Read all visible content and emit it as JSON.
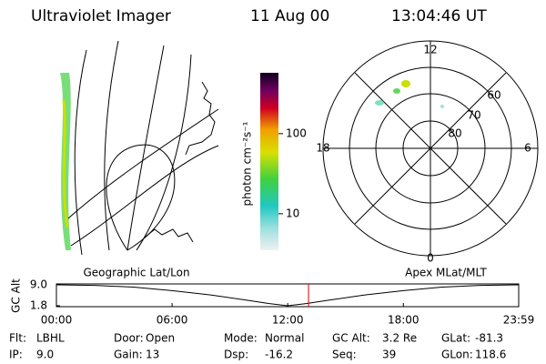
{
  "header": {
    "title": "Ultraviolet Imager",
    "date": "11 Aug 00",
    "time": "13:04:46 UT"
  },
  "colorbar": {
    "label": "photon cm⁻²s⁻¹",
    "lim": [
      3.5,
      575
    ],
    "log": true,
    "ticks": [
      10,
      100
    ]
  },
  "polar": {
    "mlt_labels": [
      "12",
      "6",
      "0",
      "18"
    ],
    "ring_labels": [
      "80",
      "70",
      "60"
    ]
  },
  "orbit": {
    "geo_label": "Geographic Lat/Lon",
    "apex_label": "Apex MLat/MLT",
    "chart_data": {
      "type": "line",
      "ylabel": "GC Alt",
      "x": [
        0,
        2,
        4,
        6,
        8,
        10,
        11,
        12,
        13,
        14,
        16,
        18,
        20,
        22,
        23.983
      ],
      "values": [
        9.0,
        8.8,
        8.2,
        7.0,
        5.5,
        3.6,
        2.6,
        1.8,
        2.6,
        3.6,
        5.5,
        7.0,
        8.2,
        8.8,
        9.0
      ],
      "color": "#000000",
      "marker_x": 13.079,
      "marker_color": "#e00000",
      "xlim": [
        0,
        23.983
      ],
      "ylim": [
        1.8,
        9.0
      ],
      "xticks": [
        {
          "value": 0,
          "label": "00:00"
        },
        {
          "value": 6,
          "label": "06:00"
        },
        {
          "value": 12,
          "label": "12:00"
        },
        {
          "value": 18,
          "label": "18:00"
        },
        {
          "value": 23.983,
          "label": "23:59"
        }
      ],
      "yticks": [
        {
          "value": 9,
          "label": "9.0"
        },
        1.8
      ]
    }
  },
  "info": {
    "rows": [
      [
        "Flt:",
        "LBHL",
        "Door:",
        "Open",
        "Mode:",
        "Normal",
        "GC Alt:",
        "3.2 Re",
        "GLat:",
        "-81.3"
      ],
      [
        "IP:",
        "9.0",
        "Gain:",
        "13",
        "Dsp:",
        "-16.2",
        "Seq:",
        "39",
        "GLon:",
        "118.6"
      ]
    ]
  }
}
